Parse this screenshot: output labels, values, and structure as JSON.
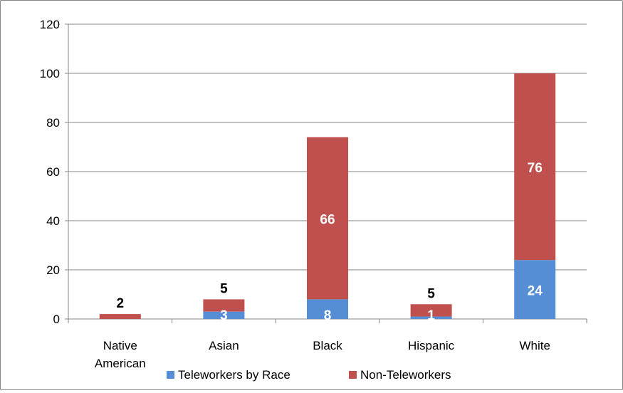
{
  "chart_data": {
    "type": "bar",
    "stacked": true,
    "categories": [
      "Native American",
      "Asian",
      "Black",
      "Hispanic",
      "White"
    ],
    "category_label_lines": [
      [
        "Native",
        "American"
      ],
      [
        "Asian"
      ],
      [
        "Black"
      ],
      [
        "Hispanic"
      ],
      [
        "White"
      ]
    ],
    "series": [
      {
        "name": "Teleworkers by Race",
        "values": [
          0,
          3,
          8,
          1,
          24
        ],
        "labels": [
          "",
          "3",
          "8",
          "1",
          "24"
        ],
        "color": "#558ED5"
      },
      {
        "name": "Non-Teleworkers",
        "values": [
          2,
          5,
          66,
          5,
          76
        ],
        "labels": [
          "2",
          "5",
          "66",
          "5",
          "76"
        ],
        "color": "#C0504D"
      }
    ],
    "ylim": [
      0,
      120
    ],
    "yticks": [
      0,
      20,
      40,
      60,
      80,
      100,
      120
    ],
    "ytick_labels": [
      "0",
      "20",
      "40",
      "60",
      "80",
      "100",
      "120"
    ],
    "grid": true,
    "legend_position": "bottom",
    "title": "",
    "xlabel": "",
    "ylabel": ""
  }
}
